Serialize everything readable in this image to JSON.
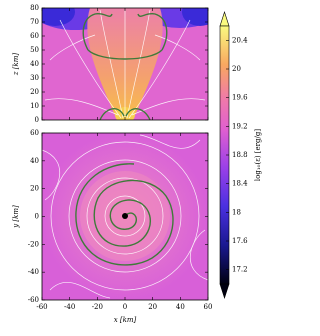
{
  "chart_data": [
    {
      "type": "heatmap",
      "ylabel": "z [km]",
      "xlim": [
        -60,
        60
      ],
      "ylim": [
        0,
        80
      ],
      "xticks": [
        -60,
        -40,
        -20,
        0,
        20,
        40,
        60
      ],
      "yticks": [
        0,
        10,
        20,
        30,
        40,
        50,
        60,
        70,
        80
      ]
    },
    {
      "type": "heatmap",
      "xlabel": "x [km]",
      "ylabel": "y [km]",
      "xlim": [
        -60,
        60
      ],
      "ylim": [
        -60,
        60
      ],
      "xticks": [
        -60,
        -40,
        -20,
        0,
        20,
        40,
        60
      ],
      "yticks": [
        -60,
        -40,
        -20,
        0,
        20,
        40,
        60
      ]
    }
  ],
  "colorbar": {
    "label": "log₁₀(ε) [erg/g]",
    "lim": [
      17.0,
      20.6
    ],
    "ticks": [
      17.2,
      17.6,
      18.0,
      18.4,
      18.8,
      19.2,
      19.6,
      20.0,
      20.4
    ]
  }
}
